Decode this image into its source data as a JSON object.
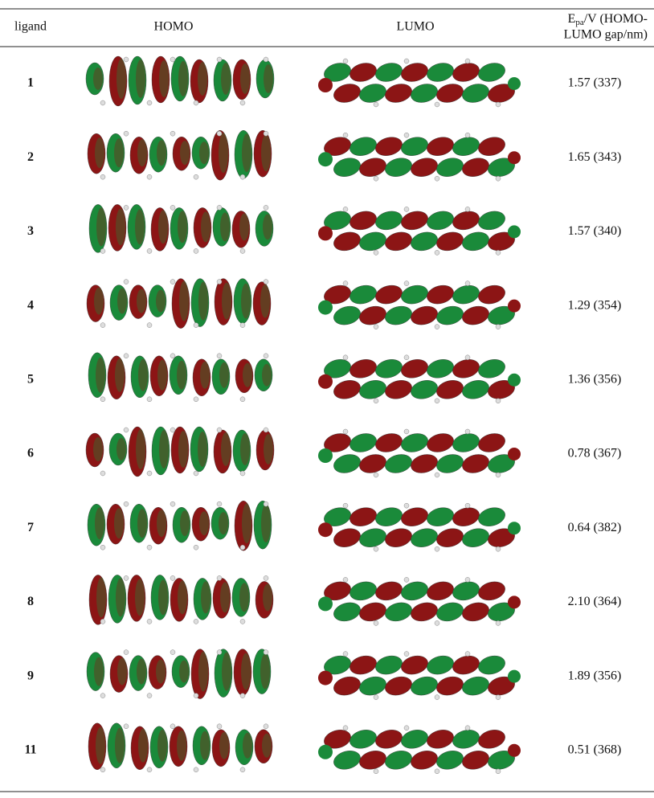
{
  "table": {
    "header": {
      "ligand": "ligand",
      "homo": "HOMO",
      "lumo": "LUMO",
      "energy": {
        "symbol": "E",
        "subscript": "pa",
        "line1": "/V (HOMO-",
        "line2": "LUMO gap/nm)"
      }
    },
    "rows": [
      [
        "1",
        "1.57 (337)"
      ],
      [
        "2",
        "1.65 (343)"
      ],
      [
        "3",
        "1.57 (340)"
      ],
      [
        "4",
        "1.29 (354)"
      ],
      [
        "5",
        "1.36 (356)"
      ],
      [
        "6",
        "0.78 (367)"
      ],
      [
        "7",
        "0.64 (382)"
      ],
      [
        "8",
        "2.10 (364)"
      ],
      [
        "9",
        "1.89 (356)"
      ],
      [
        "11",
        "0.51 (368)"
      ]
    ]
  }
}
